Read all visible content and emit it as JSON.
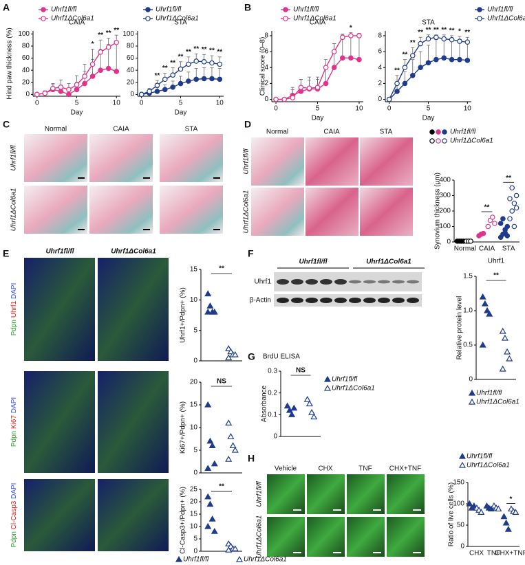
{
  "panels": {
    "letters": [
      "A",
      "B",
      "C",
      "D",
      "E",
      "F",
      "G",
      "H"
    ],
    "c_headers": [
      "Normal",
      "CAIA",
      "STA"
    ],
    "c_rows": [
      "Uhrf1fl/fl",
      "Uhrf1ΔCol6a1"
    ],
    "d_headers": [
      "Normal",
      "CAIA",
      "STA"
    ],
    "d_rows": [
      "Uhrf1fl/fl",
      "Uhrf1ΔCol6a1"
    ],
    "e_headers": [
      "Uhrf1fl/fl",
      "Uhrf1ΔCol6a1"
    ],
    "e_rows": [
      [
        "Pdpn",
        "Uhrf1",
        "DAPI"
      ],
      [
        "Pdpn",
        "Ki67",
        "DAPI"
      ],
      [
        "Pdpn",
        "Cl-Casp3",
        "DAPI"
      ]
    ],
    "f_headers": [
      "Uhrf1fl/fl",
      "Uhrf1ΔCol6a1"
    ],
    "f_rows": [
      "Uhrf1",
      "β-Actin"
    ],
    "h_headers": [
      "Vehicle",
      "CHX",
      "TNF",
      "CHX+TNF"
    ],
    "h_rows": [
      "Uhrf1fl/fl",
      "Uhrf1ΔCol6a1"
    ]
  },
  "chart_data": [
    {
      "type": "line",
      "title": "CAIA",
      "xlabel": "Day",
      "ylabel": "Hind paw thickness (%)",
      "x": [
        0,
        1,
        2,
        3,
        4,
        5,
        6,
        7,
        8,
        9,
        10
      ],
      "xlim": [
        -0.5,
        10.5
      ],
      "xticks": [
        0,
        5,
        10
      ],
      "ylim": [
        -3,
        105
      ],
      "yticks": [
        0,
        20,
        40,
        60,
        80,
        100
      ],
      "series": [
        {
          "name": "Uhrf1fl/fl",
          "color": "#e0338a",
          "fill": true,
          "values": [
            0,
            2,
            8,
            5,
            0,
            8,
            18,
            30,
            40,
            43,
            38
          ],
          "errors": [
            0,
            4,
            8,
            10,
            8,
            12,
            20,
            28,
            35,
            40,
            45
          ]
        },
        {
          "name": "Uhrf1ΔCol6a1",
          "color": "#e0338a",
          "fill": false,
          "values": [
            0,
            2,
            10,
            12,
            8,
            16,
            30,
            50,
            70,
            78,
            86
          ],
          "errors": [
            0,
            3,
            8,
            12,
            10,
            15,
            20,
            25,
            20,
            15,
            12
          ]
        }
      ],
      "significance": [
        null,
        null,
        null,
        null,
        null,
        null,
        null,
        "*",
        "**",
        "**",
        "**"
      ]
    },
    {
      "type": "line",
      "title": "STA",
      "xlabel": "Day",
      "x": [
        0,
        1,
        2,
        3,
        4,
        5,
        6,
        7,
        8,
        9,
        10
      ],
      "xlim": [
        -0.5,
        10.5
      ],
      "xticks": [
        0,
        5,
        10
      ],
      "ylim": [
        -3,
        105
      ],
      "yticks": [
        0,
        20,
        40,
        60,
        80,
        100
      ],
      "series": [
        {
          "name": "Uhrf1fl/fl",
          "color": "#1f3b8c",
          "fill": true,
          "values": [
            0,
            2,
            5,
            8,
            12,
            18,
            22,
            25,
            26,
            26,
            25
          ],
          "errors": [
            0,
            3,
            6,
            8,
            10,
            12,
            15,
            18,
            18,
            18,
            18
          ]
        },
        {
          "name": "Uhrf1ΔCol6a1",
          "color": "#1f3b8c",
          "fill": false,
          "values": [
            0,
            5,
            15,
            25,
            32,
            42,
            50,
            55,
            54,
            52,
            50
          ],
          "errors": [
            0,
            5,
            8,
            10,
            12,
            12,
            12,
            12,
            12,
            12,
            12
          ]
        }
      ],
      "significance": [
        null,
        null,
        "**",
        "**",
        "**",
        "**",
        "**",
        "**",
        "**",
        "**",
        "**"
      ]
    },
    {
      "type": "line",
      "title": "CAIA",
      "xlabel": "Day",
      "ylabel": "Clinical score (0–8)",
      "x": [
        0,
        1,
        2,
        3,
        4,
        5,
        6,
        7,
        8,
        9,
        10
      ],
      "xlim": [
        -0.5,
        10.5
      ],
      "xticks": [
        0,
        5,
        10
      ],
      "ylim": [
        -0.3,
        8.6
      ],
      "yticks": [
        0,
        2,
        4,
        6,
        8
      ],
      "series": [
        {
          "name": "Uhrf1fl/fl",
          "color": "#e0338a",
          "fill": true,
          "values": [
            0,
            0,
            0.5,
            1,
            1.3,
            1.3,
            2,
            4,
            5.2,
            5.2,
            5
          ],
          "errors": [
            0,
            0,
            1,
            1.5,
            1.5,
            1.5,
            2,
            3,
            3,
            3.2,
            3.3
          ]
        },
        {
          "name": "Uhrf1ΔCol6a1",
          "color": "#e0338a",
          "fill": false,
          "values": [
            0,
            0,
            0.2,
            1.5,
            1.4,
            1.5,
            4,
            6,
            7.8,
            8,
            8
          ],
          "errors": [
            0,
            0,
            1,
            1,
            1,
            1,
            1,
            1,
            0.3,
            0,
            0
          ]
        }
      ],
      "significance": [
        null,
        null,
        null,
        null,
        null,
        null,
        null,
        null,
        null,
        "*",
        null
      ]
    },
    {
      "type": "line",
      "title": "STA",
      "xlabel": "Day",
      "x": [
        0,
        1,
        2,
        3,
        4,
        5,
        6,
        7,
        8,
        9,
        10
      ],
      "xlim": [
        -0.5,
        10.5
      ],
      "xticks": [
        0,
        5,
        10
      ],
      "ylim": [
        -0.3,
        8.6
      ],
      "yticks": [
        0,
        2,
        4,
        6,
        8
      ],
      "series": [
        {
          "name": "Uhrf1fl/fl",
          "color": "#1f3b8c",
          "fill": true,
          "values": [
            0,
            1,
            2,
            3,
            4,
            4.6,
            5,
            5.2,
            5,
            5,
            4.9
          ],
          "errors": [
            0,
            1,
            1.5,
            2,
            2,
            2.2,
            2.5,
            2.5,
            2.5,
            2.5,
            2.5
          ]
        },
        {
          "name": "Uhrf1ΔCol6a1",
          "color": "#1f3b8c",
          "fill": false,
          "values": [
            0,
            2,
            4,
            5.5,
            7,
            7.6,
            7.8,
            7.6,
            7.5,
            7.3,
            7.2
          ],
          "errors": [
            0,
            1,
            1,
            1,
            0.8,
            0.5,
            0.3,
            0.5,
            0.5,
            0.6,
            0.6
          ]
        }
      ],
      "significance": [
        null,
        "**",
        "**",
        "**",
        "**",
        "**",
        "**",
        "**",
        "**",
        "*",
        "**"
      ]
    },
    {
      "type": "dot",
      "ylabel": "Synovium thickness (μm)",
      "categories": [
        "Normal",
        "CAIA",
        "STA"
      ],
      "category_colors": [
        "#000000",
        "#e0338a",
        "#1f3b8c"
      ],
      "marker": "circle",
      "ylim": [
        0,
        400
      ],
      "yticks": [
        0,
        100,
        200,
        300,
        400
      ],
      "series": [
        {
          "name": "Uhrf1fl/fl",
          "fill": true,
          "values": [
            [
              5,
              5,
              5,
              5
            ],
            [
              40,
              50,
              55
            ],
            [
              30,
              50,
              80,
              100,
              120,
              150,
              60,
              40
            ]
          ]
        },
        {
          "name": "Uhrf1ΔCol6a1",
          "fill": false,
          "values": [
            [
              5,
              5,
              5
            ],
            [
              100,
              140,
              160,
              120
            ],
            [
              150,
              200,
              250,
              300,
              280,
              350,
              100,
              220
            ]
          ]
        }
      ],
      "significance": [
        null,
        "**",
        "**"
      ]
    },
    {
      "type": "dot",
      "ylabel": "Uhrf1+/Pdpn+ (%)",
      "marker": "triangle",
      "ylim": [
        0,
        15
      ],
      "yticks": [
        0,
        5,
        10,
        15
      ],
      "series": [
        {
          "name": "Uhrf1fl/fl",
          "color": "#1f3b8c",
          "fill": true,
          "values": [
            11,
            9,
            8,
            8,
            8
          ]
        },
        {
          "name": "Uhrf1ΔCol6a1",
          "color": "#1f3b8c",
          "fill": false,
          "values": [
            2,
            1.5,
            1,
            1,
            0.5
          ]
        }
      ],
      "significance": "**"
    },
    {
      "type": "dot",
      "ylabel": "Ki67+/Pdpn+ (%)",
      "marker": "triangle",
      "ylim": [
        0,
        20
      ],
      "yticks": [
        0,
        5,
        10,
        15,
        20
      ],
      "series": [
        {
          "name": "Uhrf1fl/fl",
          "color": "#1f3b8c",
          "fill": true,
          "values": [
            15,
            7,
            6,
            2,
            1
          ]
        },
        {
          "name": "Uhrf1ΔCol6a1",
          "color": "#1f3b8c",
          "fill": false,
          "values": [
            11,
            8,
            6,
            5,
            3
          ]
        }
      ],
      "significance": "NS"
    },
    {
      "type": "dot",
      "ylabel": "Cl-Casp3+/Pdpn+ (%)",
      "marker": "triangle",
      "ylim": [
        0,
        25
      ],
      "yticks": [
        0,
        5,
        10,
        15,
        20,
        25
      ],
      "series": [
        {
          "name": "Uhrf1fl/fl",
          "color": "#1f3b8c",
          "fill": true,
          "values": [
            22,
            19,
            13,
            8,
            10
          ]
        },
        {
          "name": "Uhrf1ΔCol6a1",
          "color": "#1f3b8c",
          "fill": false,
          "values": [
            3,
            2,
            1,
            1,
            0.5
          ]
        }
      ],
      "significance": "**"
    },
    {
      "type": "dot",
      "title": "Uhrf1",
      "ylabel": "Relative protein level",
      "marker": "triangle",
      "ylim": [
        0,
        1.5
      ],
      "yticks": [
        0,
        0.5,
        {
          "value": 1,
          "label": "1.0"
        },
        1.5
      ],
      "series": [
        {
          "name": "Uhrf1fl/fl",
          "color": "#1f3b8c",
          "fill": true,
          "values": [
            1.2,
            1.1,
            1.0,
            0.95,
            0.5
          ]
        },
        {
          "name": "Uhrf1ΔCol6a1",
          "color": "#1f3b8c",
          "fill": false,
          "values": [
            0.7,
            0.6,
            0.4,
            0.3,
            0.15
          ]
        }
      ],
      "significance": "**"
    },
    {
      "type": "dot",
      "title": "BrdU ELISA",
      "ylabel": "Absorbance",
      "marker": "triangle",
      "ylim": [
        0,
        0.3
      ],
      "yticks": [
        0,
        0.1,
        0.2,
        0.3
      ],
      "series": [
        {
          "name": "Uhrf1fl/fl",
          "color": "#1f3b8c",
          "fill": true,
          "values": [
            0.14,
            0.12,
            0.1,
            0.13
          ]
        },
        {
          "name": "Uhrf1ΔCol6a1",
          "color": "#1f3b8c",
          "fill": false,
          "values": [
            0.17,
            0.15,
            0.11,
            0.09
          ]
        }
      ],
      "significance": "NS"
    },
    {
      "type": "dot",
      "ylabel": "Ratio of live cells (%)",
      "categories": [
        "CHX",
        "TNF",
        "CHX+TNF"
      ],
      "marker": "triangle",
      "ylim": [
        0,
        150
      ],
      "yticks": [
        0,
        50,
        100,
        150
      ],
      "series": [
        {
          "name": "Uhrf1fl/fl",
          "color": "#1f3b8c",
          "fill": true,
          "values": [
            [
              100,
              90,
              95
            ],
            [
              95,
              90,
              88
            ],
            [
              70,
              55,
              40
            ]
          ]
        },
        {
          "name": "Uhrf1ΔCol6a1",
          "color": "#1f3b8c",
          "fill": false,
          "values": [
            [
              90,
              85,
              80
            ],
            [
              95,
              90,
              88
            ],
            [
              88,
              82,
              80
            ]
          ]
        }
      ],
      "significance": [
        null,
        null,
        "*"
      ]
    }
  ]
}
